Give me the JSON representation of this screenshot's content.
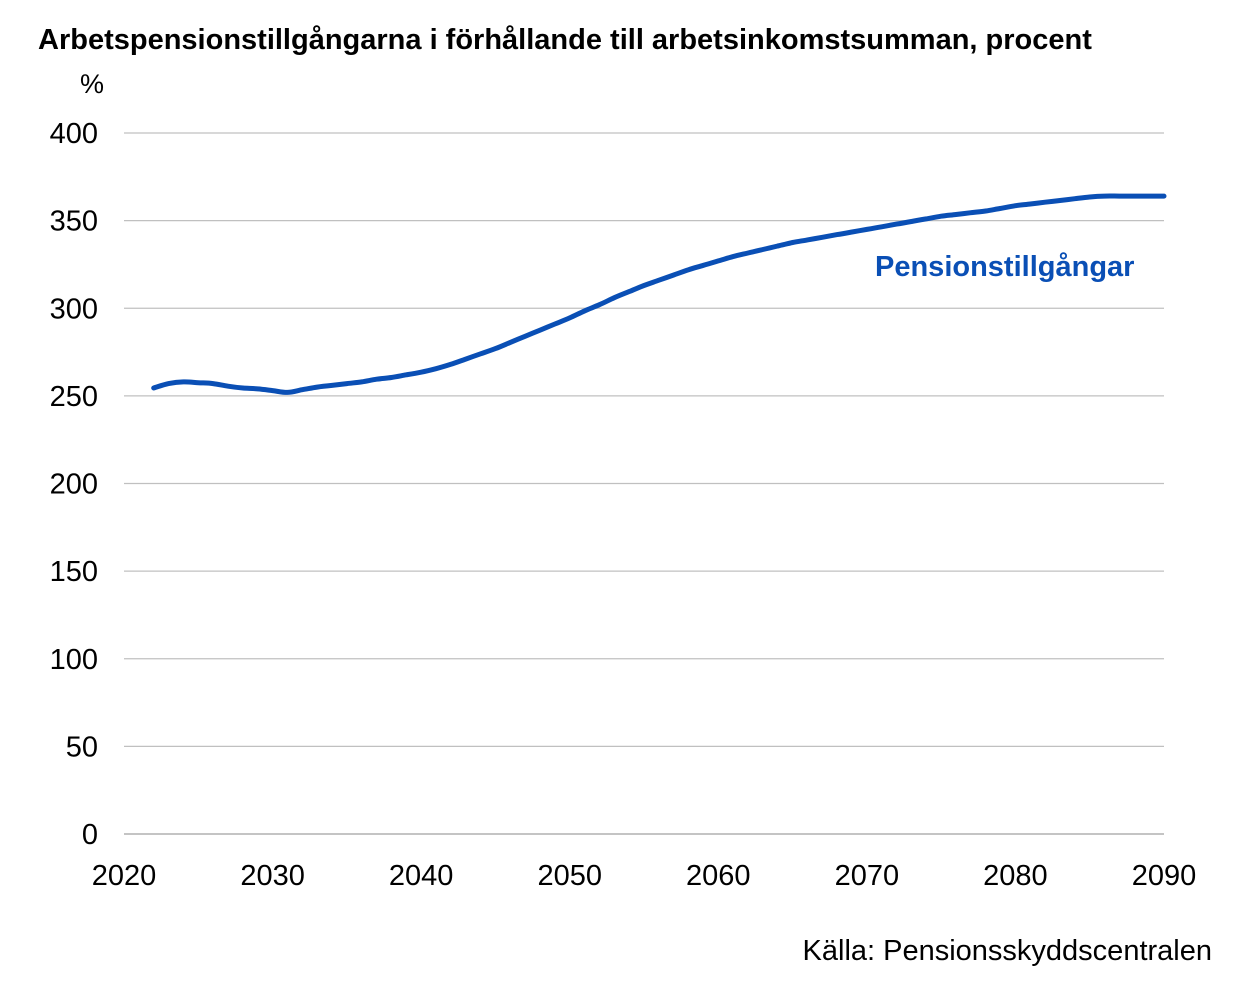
{
  "chart_data": {
    "type": "line",
    "title": "Arbetspensionstillgångarna i förhållande till arbetsinkomstsumman, procent",
    "y_unit": "%",
    "xlim": [
      2020,
      2090
    ],
    "ylim": [
      0,
      400
    ],
    "x_ticks": [
      "2020",
      "2030",
      "2040",
      "2050",
      "2060",
      "2070",
      "2080",
      "2090"
    ],
    "y_ticks": [
      "0",
      "50",
      "100",
      "150",
      "200",
      "250",
      "300",
      "350",
      "400"
    ],
    "grid": true,
    "series": [
      {
        "name": "Pensionstillgångar",
        "color": "#0a4fb5",
        "x": [
          2022,
          2023,
          2024,
          2025,
          2026,
          2027,
          2028,
          2029,
          2030,
          2031,
          2032,
          2033,
          2034,
          2035,
          2036,
          2037,
          2038,
          2039,
          2040,
          2041,
          2042,
          2043,
          2044,
          2045,
          2046,
          2047,
          2048,
          2049,
          2050,
          2051,
          2052,
          2053,
          2054,
          2055,
          2056,
          2057,
          2058,
          2059,
          2060,
          2061,
          2062,
          2063,
          2064,
          2065,
          2066,
          2067,
          2068,
          2069,
          2070,
          2071,
          2072,
          2073,
          2074,
          2075,
          2076,
          2077,
          2078,
          2079,
          2080,
          2081,
          2082,
          2083,
          2084,
          2085,
          2086,
          2087,
          2088,
          2089,
          2090
        ],
        "values": [
          254.5,
          257,
          258,
          257.5,
          257,
          255.5,
          254.5,
          254,
          253,
          252,
          253.5,
          255,
          256,
          257,
          258,
          259.5,
          260.5,
          262,
          263.5,
          265.5,
          268,
          271,
          274,
          277,
          280.5,
          284,
          287.5,
          291,
          294.5,
          298.5,
          302,
          306,
          309.5,
          313,
          316,
          319,
          322,
          324.5,
          327,
          329.5,
          331.5,
          333.5,
          335.5,
          337.5,
          339,
          340.5,
          342,
          343.5,
          345,
          346.5,
          348,
          349.5,
          351,
          352.5,
          353.5,
          354.5,
          355.5,
          357,
          358.5,
          359.5,
          360.5,
          361.5,
          362.5,
          363.5,
          364,
          364,
          364,
          364,
          364
        ]
      }
    ],
    "series_label": "Pensionstillgångar",
    "source": "Källa: Pensionsskyddscentralen"
  }
}
